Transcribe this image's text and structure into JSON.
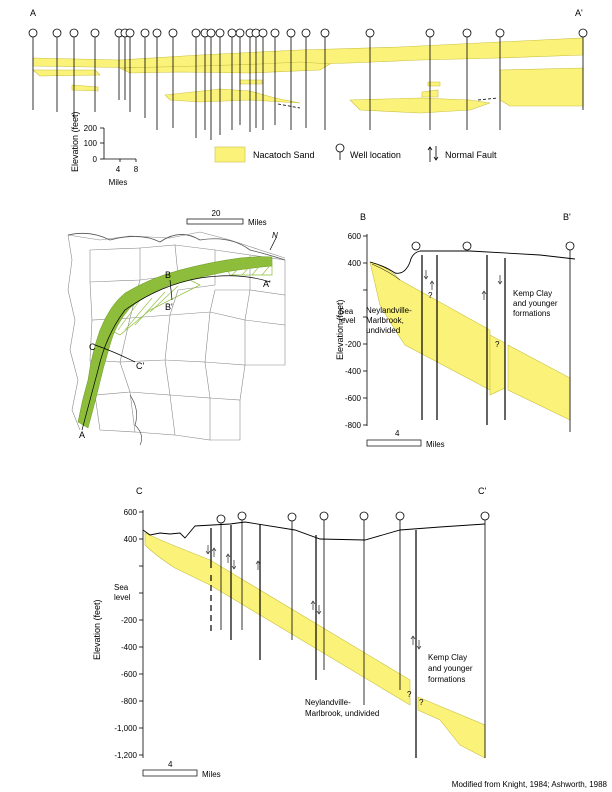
{
  "section_a": {
    "left_label": "A",
    "right_label": "A'",
    "elevation_label": "Elevation (feet)",
    "elevation_ticks": [
      "200",
      "100",
      "0"
    ],
    "scale_ticks": [
      "4",
      "8"
    ],
    "scale_unit": "Miles"
  },
  "legend": {
    "sand": "Nacatoch Sand",
    "well": "Well location",
    "fault": "Normal Fault"
  },
  "map": {
    "scale_value": "20",
    "scale_unit": "Miles",
    "north": "N",
    "labels": [
      "A",
      "A'",
      "B",
      "B'",
      "C",
      "C'"
    ]
  },
  "section_b": {
    "left_label": "B",
    "right_label": "B'",
    "elevation_label": "Elevation (feet)",
    "ticks": [
      "600",
      "400",
      "Sea",
      "level",
      "-200",
      "-400",
      "-600",
      "-800"
    ],
    "unit_left": [
      "Neylandville-",
      "Marlbrook,",
      "undivided"
    ],
    "unit_right": [
      "Kemp Clay",
      "and younger",
      "formations"
    ],
    "scale_value": "4",
    "scale_unit": "Miles"
  },
  "section_c": {
    "left_label": "C",
    "right_label": "C'",
    "elevation_label": "Elevation (feet)",
    "ticks": [
      "600",
      "400",
      "Sea",
      "level",
      "-200",
      "-400",
      "-600",
      "-800",
      "-1,000",
      "-1,200"
    ],
    "unit_left": [
      "Neylandville-",
      "Marlbrook, undivided"
    ],
    "unit_right": [
      "Kemp Clay",
      "and younger",
      "formations"
    ],
    "scale_value": "4",
    "scale_unit": "Miles"
  },
  "credit": "Modified from Knight, 1984; Ashworth, 1988",
  "colors": {
    "sand": "#fbf27a",
    "sand_stroke": "#c9c040",
    "belt": "#8dbd3a",
    "lines": "#000000",
    "map_lines": "#8a8a8a"
  }
}
